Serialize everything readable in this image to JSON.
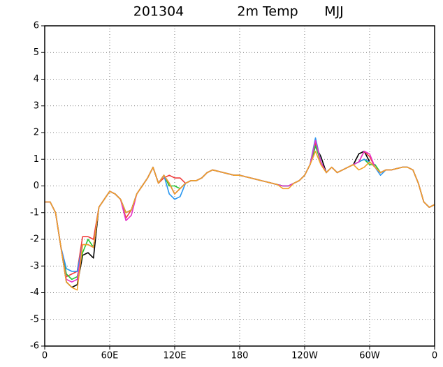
{
  "chart_data": {
    "type": "line",
    "title_parts": [
      "201304",
      "2m Temp",
      "MJJ"
    ],
    "xlim": [
      0,
      360
    ],
    "xticks": [
      0,
      {
        "value": 60,
        "label": "60E"
      },
      {
        "value": 120,
        "label": "120E"
      },
      180,
      {
        "value": 240,
        "label": "120W"
      },
      {
        "value": 300,
        "label": "60W"
      },
      {
        "value": 360,
        "label": "0"
      }
    ],
    "ylim": [
      -6,
      6
    ],
    "yticks": [
      -6,
      -5,
      -4,
      -3,
      -2,
      -1,
      0,
      1,
      2,
      3,
      4,
      5,
      6
    ],
    "grid": true,
    "x": [
      0,
      5,
      10,
      15,
      20,
      25,
      30,
      35,
      40,
      45,
      50,
      55,
      60,
      65,
      70,
      75,
      80,
      85,
      90,
      95,
      100,
      105,
      110,
      115,
      120,
      125,
      130,
      135,
      140,
      145,
      150,
      155,
      160,
      165,
      170,
      175,
      180,
      185,
      190,
      195,
      200,
      205,
      210,
      215,
      220,
      225,
      230,
      235,
      240,
      245,
      250,
      255,
      260,
      265,
      270,
      275,
      280,
      285,
      290,
      295,
      300,
      305,
      310,
      315,
      320,
      325,
      330,
      335,
      340,
      345,
      350,
      355,
      360
    ],
    "series": [
      {
        "color": "#000000",
        "values": [
          -0.6,
          -0.6,
          -1.0,
          -2.3,
          -3.6,
          -3.8,
          -3.7,
          -2.6,
          -2.5,
          -2.7,
          -0.8,
          -0.5,
          -0.2,
          -0.3,
          -0.5,
          -1.0,
          -0.9,
          -0.3,
          0.0,
          0.3,
          0.7,
          0.1,
          0.4,
          0.1,
          -0.3,
          -0.1,
          0.1,
          0.2,
          0.2,
          0.3,
          0.5,
          0.6,
          0.55,
          0.5,
          0.45,
          0.4,
          0.4,
          0.35,
          0.3,
          0.25,
          0.2,
          0.15,
          0.1,
          0.05,
          0.0,
          0.0,
          0.1,
          0.2,
          0.4,
          0.8,
          1.5,
          1.1,
          0.5,
          0.7,
          0.5,
          0.6,
          0.7,
          0.8,
          1.2,
          1.3,
          0.9,
          0.7,
          0.5,
          0.6,
          0.6,
          0.65,
          0.7,
          0.7,
          0.6,
          0.1,
          -0.6,
          -0.8,
          -0.7
        ]
      },
      {
        "color": "#f03c3c",
        "values": [
          -0.6,
          -0.6,
          -1.0,
          -2.3,
          -3.4,
          -3.3,
          -3.2,
          -1.9,
          -1.9,
          -2.0,
          -0.8,
          -0.5,
          -0.2,
          -0.3,
          -0.5,
          -1.2,
          -0.9,
          -0.3,
          0.0,
          0.3,
          0.7,
          0.1,
          0.3,
          0.4,
          0.3,
          0.3,
          0.1,
          0.2,
          0.2,
          0.3,
          0.5,
          0.6,
          0.55,
          0.5,
          0.45,
          0.4,
          0.4,
          0.35,
          0.3,
          0.25,
          0.2,
          0.15,
          0.1,
          0.05,
          0.0,
          0.0,
          0.1,
          0.2,
          0.4,
          0.8,
          1.6,
          0.9,
          0.5,
          0.7,
          0.5,
          0.6,
          0.7,
          0.8,
          0.9,
          1.3,
          1.1,
          0.7,
          0.5,
          0.6,
          0.6,
          0.65,
          0.7,
          0.7,
          0.6,
          0.1,
          -0.6,
          -0.8,
          -0.7
        ]
      },
      {
        "color": "#22c832",
        "values": [
          -0.6,
          -0.6,
          -1.0,
          -2.3,
          -3.3,
          -3.5,
          -3.4,
          -2.5,
          -2.0,
          -2.3,
          -0.8,
          -0.5,
          -0.2,
          -0.3,
          -0.5,
          -1.0,
          -0.9,
          -0.3,
          0.0,
          0.3,
          0.7,
          0.1,
          0.4,
          0.0,
          0.0,
          -0.1,
          0.1,
          0.2,
          0.2,
          0.3,
          0.5,
          0.6,
          0.55,
          0.5,
          0.45,
          0.4,
          0.4,
          0.35,
          0.3,
          0.25,
          0.2,
          0.15,
          0.1,
          0.05,
          0.0,
          0.0,
          0.1,
          0.2,
          0.4,
          0.8,
          1.5,
          0.9,
          0.5,
          0.7,
          0.5,
          0.6,
          0.7,
          0.8,
          0.9,
          1.0,
          0.8,
          0.8,
          0.5,
          0.6,
          0.6,
          0.65,
          0.7,
          0.7,
          0.6,
          0.1,
          -0.6,
          -0.8,
          -0.7
        ]
      },
      {
        "color": "#2896f0",
        "values": [
          -0.6,
          -0.6,
          -1.0,
          -2.3,
          -3.1,
          -3.2,
          -3.2,
          -2.2,
          -2.2,
          -2.3,
          -0.8,
          -0.5,
          -0.2,
          -0.3,
          -0.5,
          -1.0,
          -0.9,
          -0.3,
          0.0,
          0.3,
          0.7,
          0.1,
          0.4,
          -0.3,
          -0.5,
          -0.4,
          0.1,
          0.2,
          0.2,
          0.3,
          0.5,
          0.6,
          0.55,
          0.5,
          0.45,
          0.4,
          0.4,
          0.35,
          0.3,
          0.25,
          0.2,
          0.15,
          0.1,
          0.05,
          0.0,
          0.0,
          0.1,
          0.2,
          0.4,
          0.8,
          1.8,
          0.9,
          0.5,
          0.7,
          0.5,
          0.6,
          0.7,
          0.8,
          0.9,
          1.0,
          0.9,
          0.7,
          0.4,
          0.6,
          0.6,
          0.65,
          0.7,
          0.7,
          0.6,
          0.1,
          -0.6,
          -0.8,
          -0.7
        ]
      },
      {
        "color": "#e632c8",
        "values": [
          -0.6,
          -0.6,
          -1.0,
          -2.3,
          -3.5,
          -3.6,
          -3.5,
          -2.2,
          -2.2,
          -2.3,
          -0.8,
          -0.5,
          -0.2,
          -0.3,
          -0.5,
          -1.3,
          -1.1,
          -0.3,
          0.0,
          0.3,
          0.7,
          0.1,
          0.4,
          0.1,
          -0.3,
          -0.1,
          0.1,
          0.2,
          0.2,
          0.3,
          0.5,
          0.6,
          0.55,
          0.5,
          0.45,
          0.4,
          0.4,
          0.35,
          0.3,
          0.25,
          0.2,
          0.15,
          0.1,
          0.05,
          0.0,
          0.0,
          0.1,
          0.2,
          0.4,
          0.8,
          1.7,
          0.9,
          0.5,
          0.7,
          0.5,
          0.6,
          0.7,
          0.8,
          0.9,
          1.3,
          1.2,
          0.7,
          0.5,
          0.6,
          0.6,
          0.65,
          0.7,
          0.7,
          0.6,
          0.1,
          -0.6,
          -0.8,
          -0.7
        ]
      },
      {
        "color": "#f0a028",
        "values": [
          -0.6,
          -0.6,
          -1.0,
          -2.3,
          -3.6,
          -3.8,
          -3.9,
          -2.2,
          -2.2,
          -2.3,
          -0.8,
          -0.5,
          -0.2,
          -0.3,
          -0.5,
          -1.0,
          -0.9,
          -0.3,
          0.0,
          0.3,
          0.7,
          0.1,
          0.4,
          0.1,
          -0.3,
          -0.1,
          0.1,
          0.2,
          0.2,
          0.3,
          0.5,
          0.6,
          0.55,
          0.5,
          0.45,
          0.4,
          0.4,
          0.35,
          0.3,
          0.25,
          0.2,
          0.15,
          0.1,
          0.05,
          -0.1,
          -0.1,
          0.1,
          0.2,
          0.4,
          0.8,
          1.3,
          0.8,
          0.5,
          0.7,
          0.5,
          0.6,
          0.7,
          0.8,
          0.6,
          0.7,
          0.9,
          0.7,
          0.5,
          0.6,
          0.6,
          0.65,
          0.7,
          0.7,
          0.6,
          0.1,
          -0.6,
          -0.8,
          -0.7
        ]
      }
    ]
  }
}
